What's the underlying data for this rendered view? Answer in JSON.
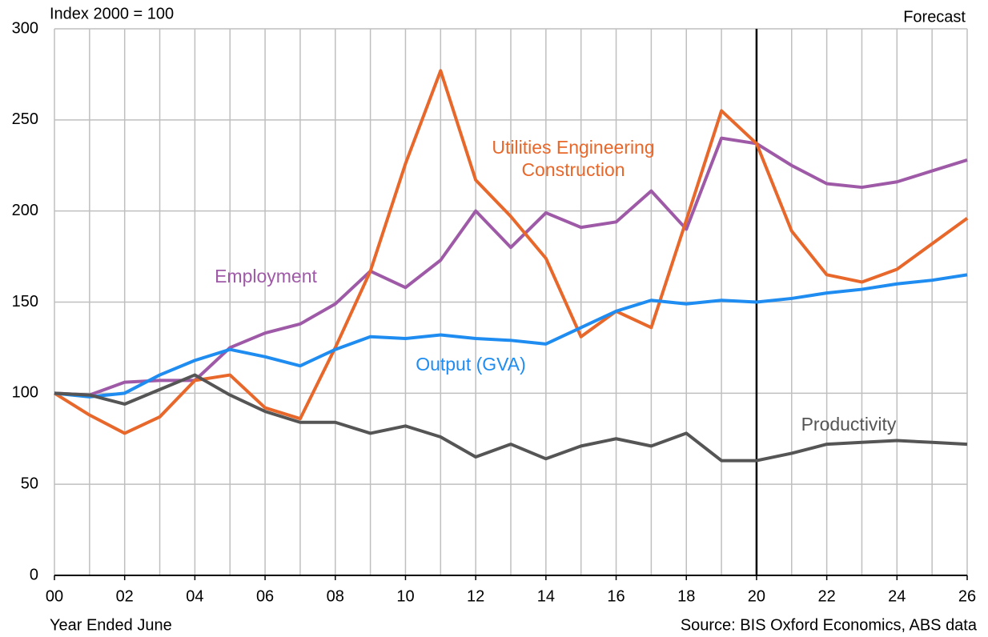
{
  "chart_data": {
    "type": "line",
    "y_label": "Index 2000 = 100",
    "x_label": "Year Ended June",
    "source": "Source: BIS Oxford Economics, ABS data",
    "forecast_label": "Forecast",
    "forecast_start": 20,
    "x": [
      0,
      1,
      2,
      3,
      4,
      5,
      6,
      7,
      8,
      9,
      10,
      11,
      12,
      13,
      14,
      15,
      16,
      17,
      18,
      19,
      20,
      21,
      22,
      23,
      24,
      25,
      26
    ],
    "xlim": [
      0,
      26
    ],
    "xticks": [
      {
        "value": 0,
        "label": "00"
      },
      {
        "value": 2,
        "label": "02"
      },
      {
        "value": 4,
        "label": "04"
      },
      {
        "value": 6,
        "label": "06"
      },
      {
        "value": 8,
        "label": "08"
      },
      {
        "value": 10,
        "label": "10"
      },
      {
        "value": 12,
        "label": "12"
      },
      {
        "value": 14,
        "label": "14"
      },
      {
        "value": 16,
        "label": "16"
      },
      {
        "value": 18,
        "label": "18"
      },
      {
        "value": 20,
        "label": "20"
      },
      {
        "value": 22,
        "label": "22"
      },
      {
        "value": 24,
        "label": "24"
      },
      {
        "value": 26,
        "label": "26"
      }
    ],
    "ylim": [
      0,
      300
    ],
    "yticks": [
      0,
      50,
      100,
      150,
      200,
      250,
      300
    ],
    "grid": true,
    "series": [
      {
        "name": "Employment",
        "color": "#9e5aa6",
        "values": [
          100,
          99,
          106,
          107,
          107,
          125,
          133,
          138,
          149,
          167,
          158,
          173,
          200,
          180,
          199,
          191,
          194,
          211,
          190,
          240,
          237,
          225,
          215,
          213,
          216,
          222,
          228
        ]
      },
      {
        "name": "Utilities Engineering Construction",
        "color": "#e8672a",
        "values": [
          100,
          88,
          78,
          87,
          107,
          110,
          92,
          86,
          125,
          167,
          226,
          277,
          217,
          197,
          174,
          131,
          145,
          136,
          195,
          255,
          237,
          189,
          165,
          161,
          168,
          182,
          196
        ]
      },
      {
        "name": "Output (GVA)",
        "color": "#1e8cf0",
        "values": [
          100,
          98,
          100,
          110,
          118,
          124,
          120,
          115,
          124,
          131,
          130,
          132,
          130,
          129,
          127,
          136,
          145,
          151,
          149,
          151,
          150,
          152,
          155,
          157,
          160,
          162,
          165
        ]
      },
      {
        "name": "Productivity",
        "color": "#555555",
        "values": [
          100,
          99,
          94,
          102,
          110,
          99,
          90,
          84,
          84,
          78,
          82,
          76,
          65,
          72,
          64,
          71,
          75,
          71,
          78,
          63,
          63,
          67,
          72,
          73,
          74,
          73,
          72
        ]
      }
    ]
  }
}
